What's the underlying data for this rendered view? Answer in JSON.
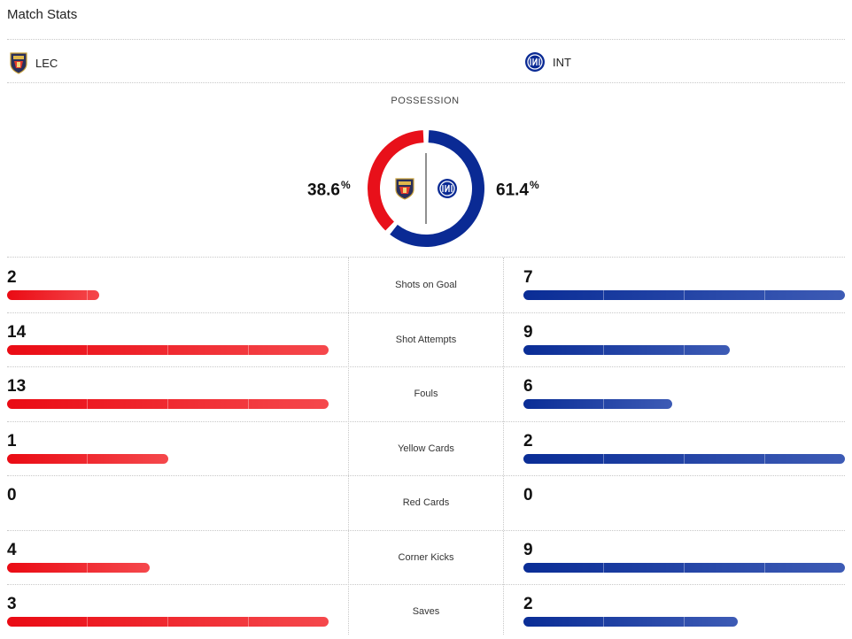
{
  "page_title": "Match Stats",
  "teams": {
    "home": {
      "abbr": "LEC",
      "color": "#e8101a"
    },
    "away": {
      "abbr": "INT",
      "color": "#0a2a94"
    }
  },
  "possession": {
    "label": "POSSESSION",
    "home_value": "38.6",
    "away_value": "61.4",
    "unit": "%",
    "home_fraction": 0.386,
    "away_fraction": 0.614
  },
  "stats": [
    {
      "label": "Shots on Goal",
      "home": "2",
      "away": "7",
      "home_fill": 0.286,
      "away_fill": 1.0
    },
    {
      "label": "Shot Attempts",
      "home": "14",
      "away": "9",
      "home_fill": 1.0,
      "away_fill": 0.643
    },
    {
      "label": "Fouls",
      "home": "13",
      "away": "6",
      "home_fill": 1.0,
      "away_fill": 0.462
    },
    {
      "label": "Yellow Cards",
      "home": "1",
      "away": "2",
      "home_fill": 0.5,
      "away_fill": 1.0
    },
    {
      "label": "Red Cards",
      "home": "0",
      "away": "0",
      "home_fill": 0,
      "away_fill": 0
    },
    {
      "label": "Corner Kicks",
      "home": "4",
      "away": "9",
      "home_fill": 0.444,
      "away_fill": 1.0
    },
    {
      "label": "Saves",
      "home": "3",
      "away": "2",
      "home_fill": 1.0,
      "away_fill": 0.667
    }
  ]
}
